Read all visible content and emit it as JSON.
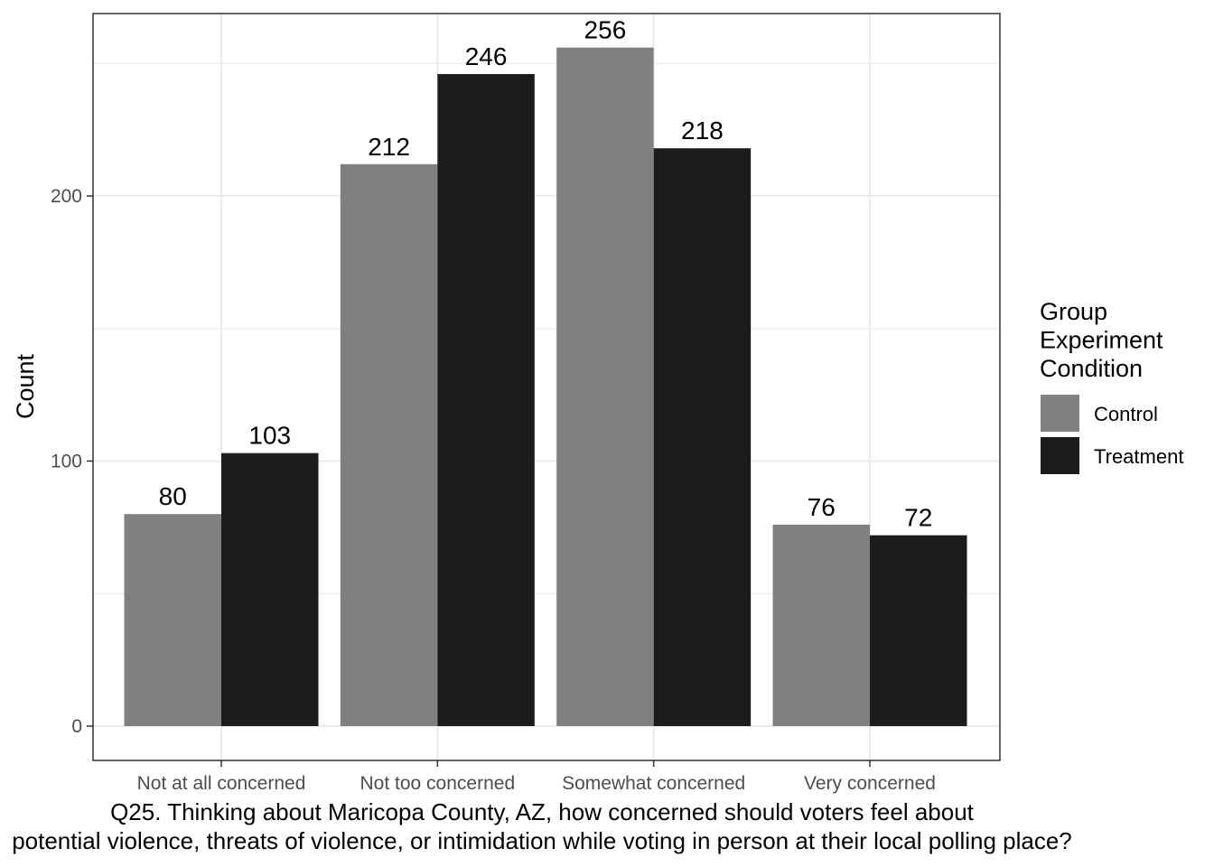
{
  "chart_data": {
    "type": "bar",
    "categories": [
      "Not at all concerned",
      "Not too concerned",
      "Somewhat concerned",
      "Very concerned"
    ],
    "series": [
      {
        "name": "Control",
        "values": [
          80,
          212,
          256,
          76
        ],
        "color": "#808080"
      },
      {
        "name": "Treatment",
        "values": [
          103,
          246,
          218,
          72
        ],
        "color": "#1c1c1c"
      }
    ],
    "ylabel": "Count",
    "ylim": [
      0,
      270
    ],
    "yticks": [
      0,
      100,
      200
    ],
    "legend_title": [
      "Group",
      "Experiment",
      "Condition"
    ],
    "legend_position": "right",
    "grid": true,
    "caption": [
      "Q25. Thinking about Maricopa County, AZ, how concerned should voters feel about",
      "potential violence, threats of violence, or intimidation while voting in person at their local polling place?"
    ]
  }
}
